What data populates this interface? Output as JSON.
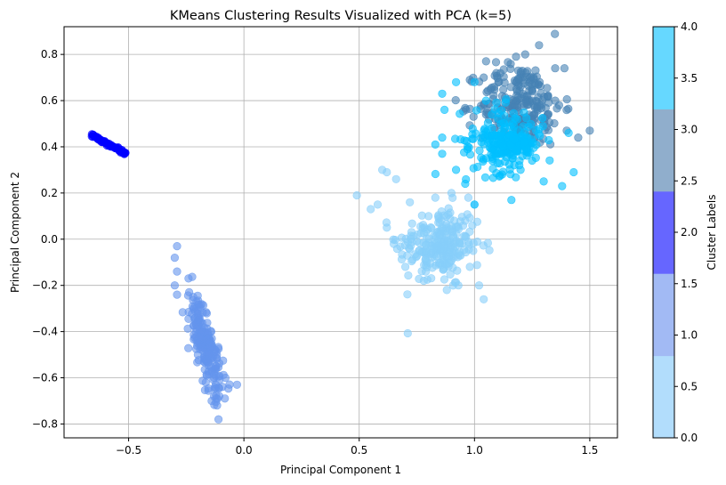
{
  "chart_data": {
    "type": "scatter",
    "title": "KMeans Clustering Results Visualized with PCA (k=5)",
    "xlabel": "Principal Component 1",
    "ylabel": "Principal Component 2",
    "xlim": [
      -0.78,
      1.62
    ],
    "ylim": [
      -0.86,
      0.92
    ],
    "xticks": [
      -0.5,
      0.0,
      0.5,
      1.0,
      1.5
    ],
    "xtick_labels": [
      "−0.5",
      "0.0",
      "0.5",
      "1.0",
      "1.5"
    ],
    "yticks": [
      -0.8,
      -0.6,
      -0.4,
      -0.2,
      0.0,
      0.2,
      0.4,
      0.6,
      0.8
    ],
    "ytick_labels": [
      "−0.8",
      "−0.6",
      "−0.4",
      "−0.2",
      "0.0",
      "0.2",
      "0.4",
      "0.6",
      "0.8"
    ],
    "grid": true,
    "marker_alpha": 0.6,
    "clusters": [
      {
        "label": 0,
        "color": "#87cefa",
        "center": [
          0.85,
          -0.03
        ],
        "spread": [
          0.09,
          0.09
        ],
        "points": [
          [
            0.49,
            0.19
          ],
          [
            0.6,
            0.3
          ],
          [
            0.62,
            0.29
          ],
          [
            0.66,
            0.26
          ],
          [
            0.58,
            0.15
          ],
          [
            0.62,
            0.05
          ],
          [
            0.65,
            -0.02
          ],
          [
            0.7,
            -0.12
          ],
          [
            0.78,
            -0.18
          ],
          [
            0.88,
            -0.22
          ],
          [
            0.93,
            -0.2
          ],
          [
            1.04,
            -0.26
          ],
          [
            1.02,
            -0.2
          ],
          [
            1.0,
            0.15
          ],
          [
            0.96,
            0.08
          ],
          [
            0.98,
            -0.12
          ],
          [
            0.55,
            0.13
          ],
          [
            0.83,
            0.18
          ],
          [
            0.9,
            0.2
          ],
          [
            0.72,
            0.16
          ]
        ]
      },
      {
        "label": 1,
        "color": "#6495ed",
        "center": [
          -0.17,
          -0.46
        ],
        "spread": [
          0.03,
          0.09
        ],
        "points": [
          [
            -0.29,
            -0.03
          ],
          [
            -0.3,
            -0.08
          ],
          [
            -0.29,
            -0.14
          ],
          [
            -0.3,
            -0.2
          ],
          [
            -0.29,
            -0.24
          ],
          [
            -0.24,
            -0.17
          ],
          [
            -0.22,
            -0.25
          ],
          [
            -0.2,
            -0.31
          ],
          [
            -0.18,
            -0.4
          ],
          [
            -0.15,
            -0.5
          ],
          [
            -0.13,
            -0.6
          ],
          [
            -0.14,
            -0.7
          ],
          [
            -0.11,
            -0.78
          ],
          [
            -0.13,
            -0.68
          ],
          [
            -0.03,
            -0.63
          ],
          [
            -0.08,
            -0.6
          ],
          [
            -0.2,
            -0.45
          ],
          [
            -0.12,
            -0.55
          ]
        ]
      },
      {
        "label": 2,
        "color": "#0000ff",
        "line": [
          [
            -0.66,
            0.45
          ],
          [
            -0.51,
            0.37
          ]
        ]
      },
      {
        "label": 3,
        "color": "#4682b4",
        "center": [
          1.2,
          0.58
        ],
        "spread": [
          0.09,
          0.09
        ],
        "points": [
          [
            1.28,
            0.84
          ],
          [
            1.22,
            0.8
          ],
          [
            1.18,
            0.79
          ],
          [
            1.05,
            0.77
          ],
          [
            1.35,
            0.74
          ],
          [
            1.39,
            0.74
          ],
          [
            1.5,
            0.47
          ],
          [
            1.45,
            0.44
          ],
          [
            1.4,
            0.47
          ],
          [
            1.3,
            0.5
          ],
          [
            1.25,
            0.6
          ],
          [
            1.12,
            0.62
          ],
          [
            1.04,
            0.7
          ],
          [
            0.98,
            0.69
          ],
          [
            1.09,
            0.52
          ],
          [
            1.35,
            0.6
          ],
          [
            1.2,
            0.66
          ]
        ]
      },
      {
        "label": 4,
        "color": "#00bfff",
        "center": [
          1.12,
          0.43
        ],
        "spread": [
          0.09,
          0.07
        ],
        "points": [
          [
            0.86,
            0.63
          ],
          [
            0.87,
            0.56
          ],
          [
            0.92,
            0.68
          ],
          [
            1.0,
            0.68
          ],
          [
            1.05,
            0.6
          ],
          [
            0.86,
            0.44
          ],
          [
            0.83,
            0.41
          ],
          [
            0.86,
            0.37
          ],
          [
            0.92,
            0.3
          ],
          [
            0.96,
            0.24
          ],
          [
            0.97,
            0.39
          ],
          [
            1.03,
            0.42
          ],
          [
            1.05,
            0.35
          ],
          [
            1.12,
            0.28
          ],
          [
            1.16,
            0.17
          ],
          [
            1.2,
            0.3
          ],
          [
            1.25,
            0.34
          ],
          [
            1.3,
            0.25
          ],
          [
            1.38,
            0.23
          ],
          [
            1.43,
            0.29
          ],
          [
            1.0,
            0.15
          ],
          [
            1.1,
            0.33
          ]
        ]
      }
    ],
    "colorbar": {
      "label": "Cluster Labels",
      "range": [
        0.0,
        4.0
      ],
      "ticks": [
        0.0,
        0.5,
        1.0,
        1.5,
        2.0,
        2.5,
        3.0,
        3.5,
        4.0
      ],
      "tick_labels": [
        "0.0",
        "0.5",
        "1.0",
        "1.5",
        "2.0",
        "2.5",
        "3.0",
        "3.5",
        "4.0"
      ],
      "colors": [
        "#b2ddfc",
        "#a2baf4",
        "#6666ff",
        "#90aecc",
        "#66d8ff"
      ]
    }
  }
}
